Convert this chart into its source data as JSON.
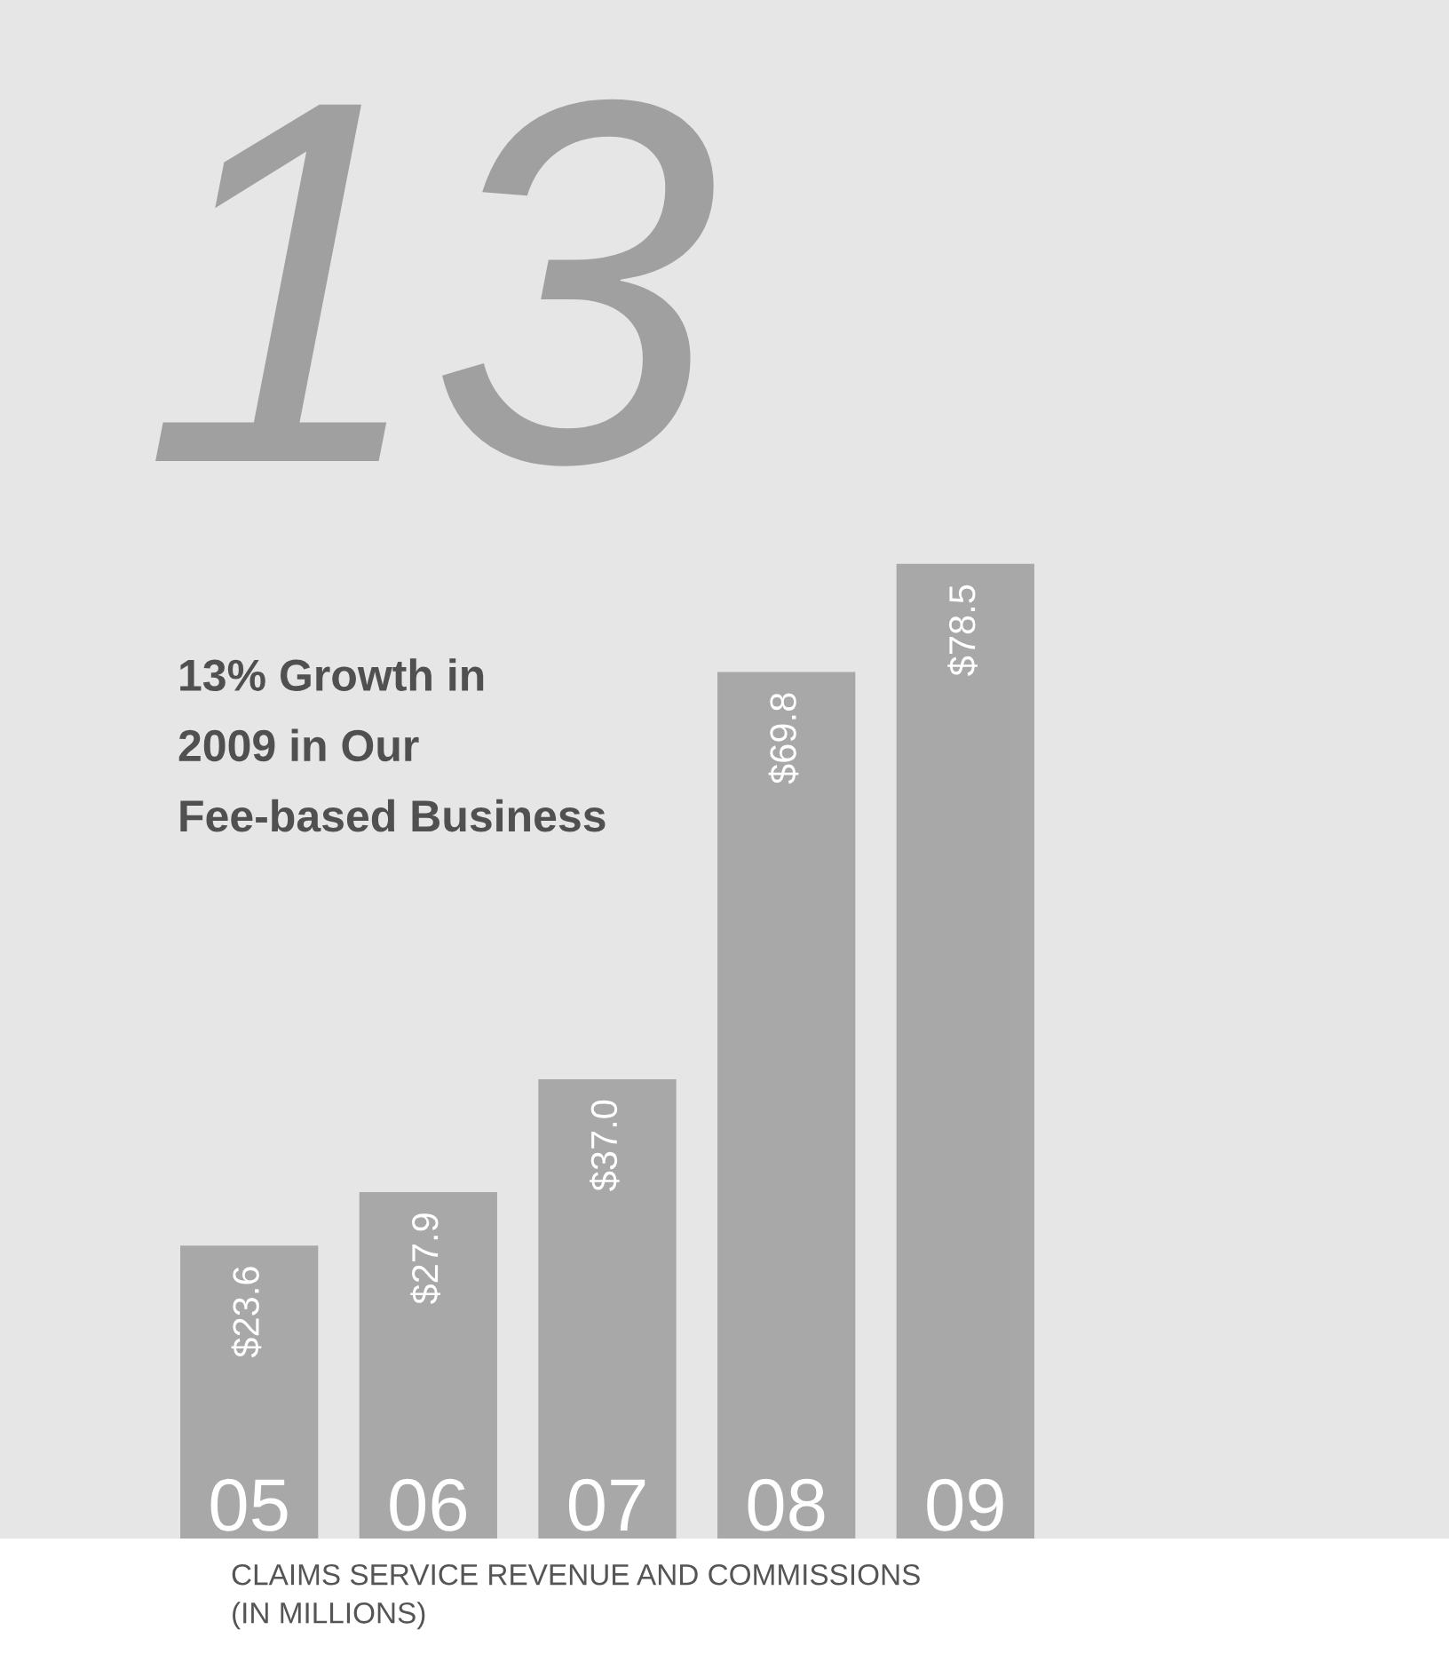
{
  "chart_data": {
    "type": "bar",
    "title": "13% Growth in\n2009 in Our\nFee-based Business",
    "categories": [
      "05",
      "06",
      "07",
      "08",
      "09"
    ],
    "values": [
      23.6,
      27.9,
      37.0,
      69.8,
      78.5
    ],
    "value_labels": [
      "$23.6",
      "$27.9",
      "$37.0",
      "$69.8",
      "$78.5"
    ],
    "color": "#a8a8a8",
    "annotations": [
      "13",
      "CLAIMS SERVICE REVENUE AND COMMISSIONS\n(IN MILLIONS)"
    ],
    "data_labels": false
  }
}
